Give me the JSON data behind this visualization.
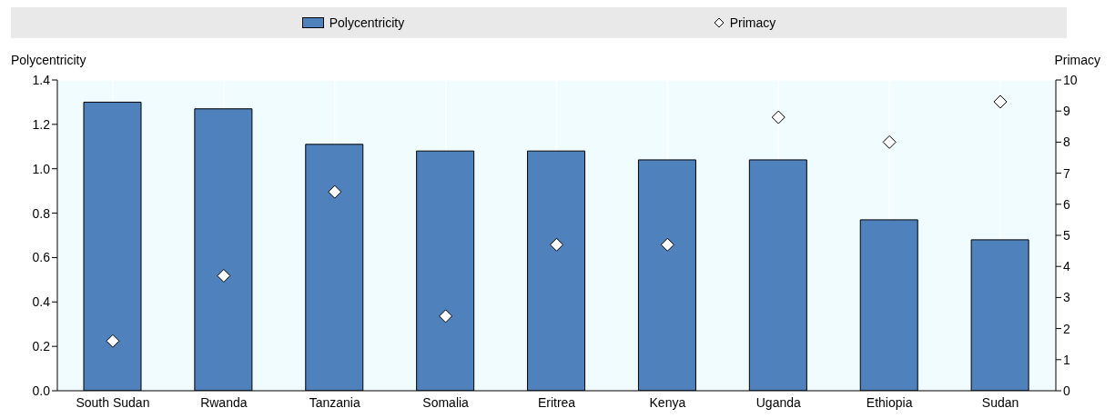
{
  "chart_data": {
    "type": "bar",
    "ylabel": "Polycentricity",
    "y2label": "Primacy",
    "categories": [
      "South Sudan",
      "Rwanda",
      "Tanzania",
      "Somalia",
      "Eritrea",
      "Kenya",
      "Uganda",
      "Ethiopia",
      "Sudan"
    ],
    "series": [
      {
        "name": "Polycentricity",
        "color": "#4f81bd",
        "values": [
          1.3,
          1.27,
          1.11,
          1.08,
          1.08,
          1.04,
          1.04,
          0.77,
          0.68
        ]
      },
      {
        "name": "Primacy",
        "type": "scatter",
        "axis": "y2",
        "color": "#ffffff",
        "marker": "diamond",
        "values": [
          1.6,
          3.7,
          6.4,
          2.4,
          4.7,
          4.7,
          8.8,
          8.0,
          9.3
        ]
      }
    ],
    "ylim": [
      0,
      1.4
    ],
    "yticks": [
      {
        "value": 0,
        "label": "0.0"
      },
      0.2,
      0.4,
      0.6,
      0.8,
      {
        "value": 1,
        "label": "1.0"
      },
      1.2,
      1.4
    ],
    "y2lim": [
      0,
      10
    ],
    "y2ticks": [
      0,
      1,
      2,
      3,
      4,
      5,
      6,
      7,
      8,
      9,
      10
    ],
    "grid": true,
    "legend": "top"
  }
}
